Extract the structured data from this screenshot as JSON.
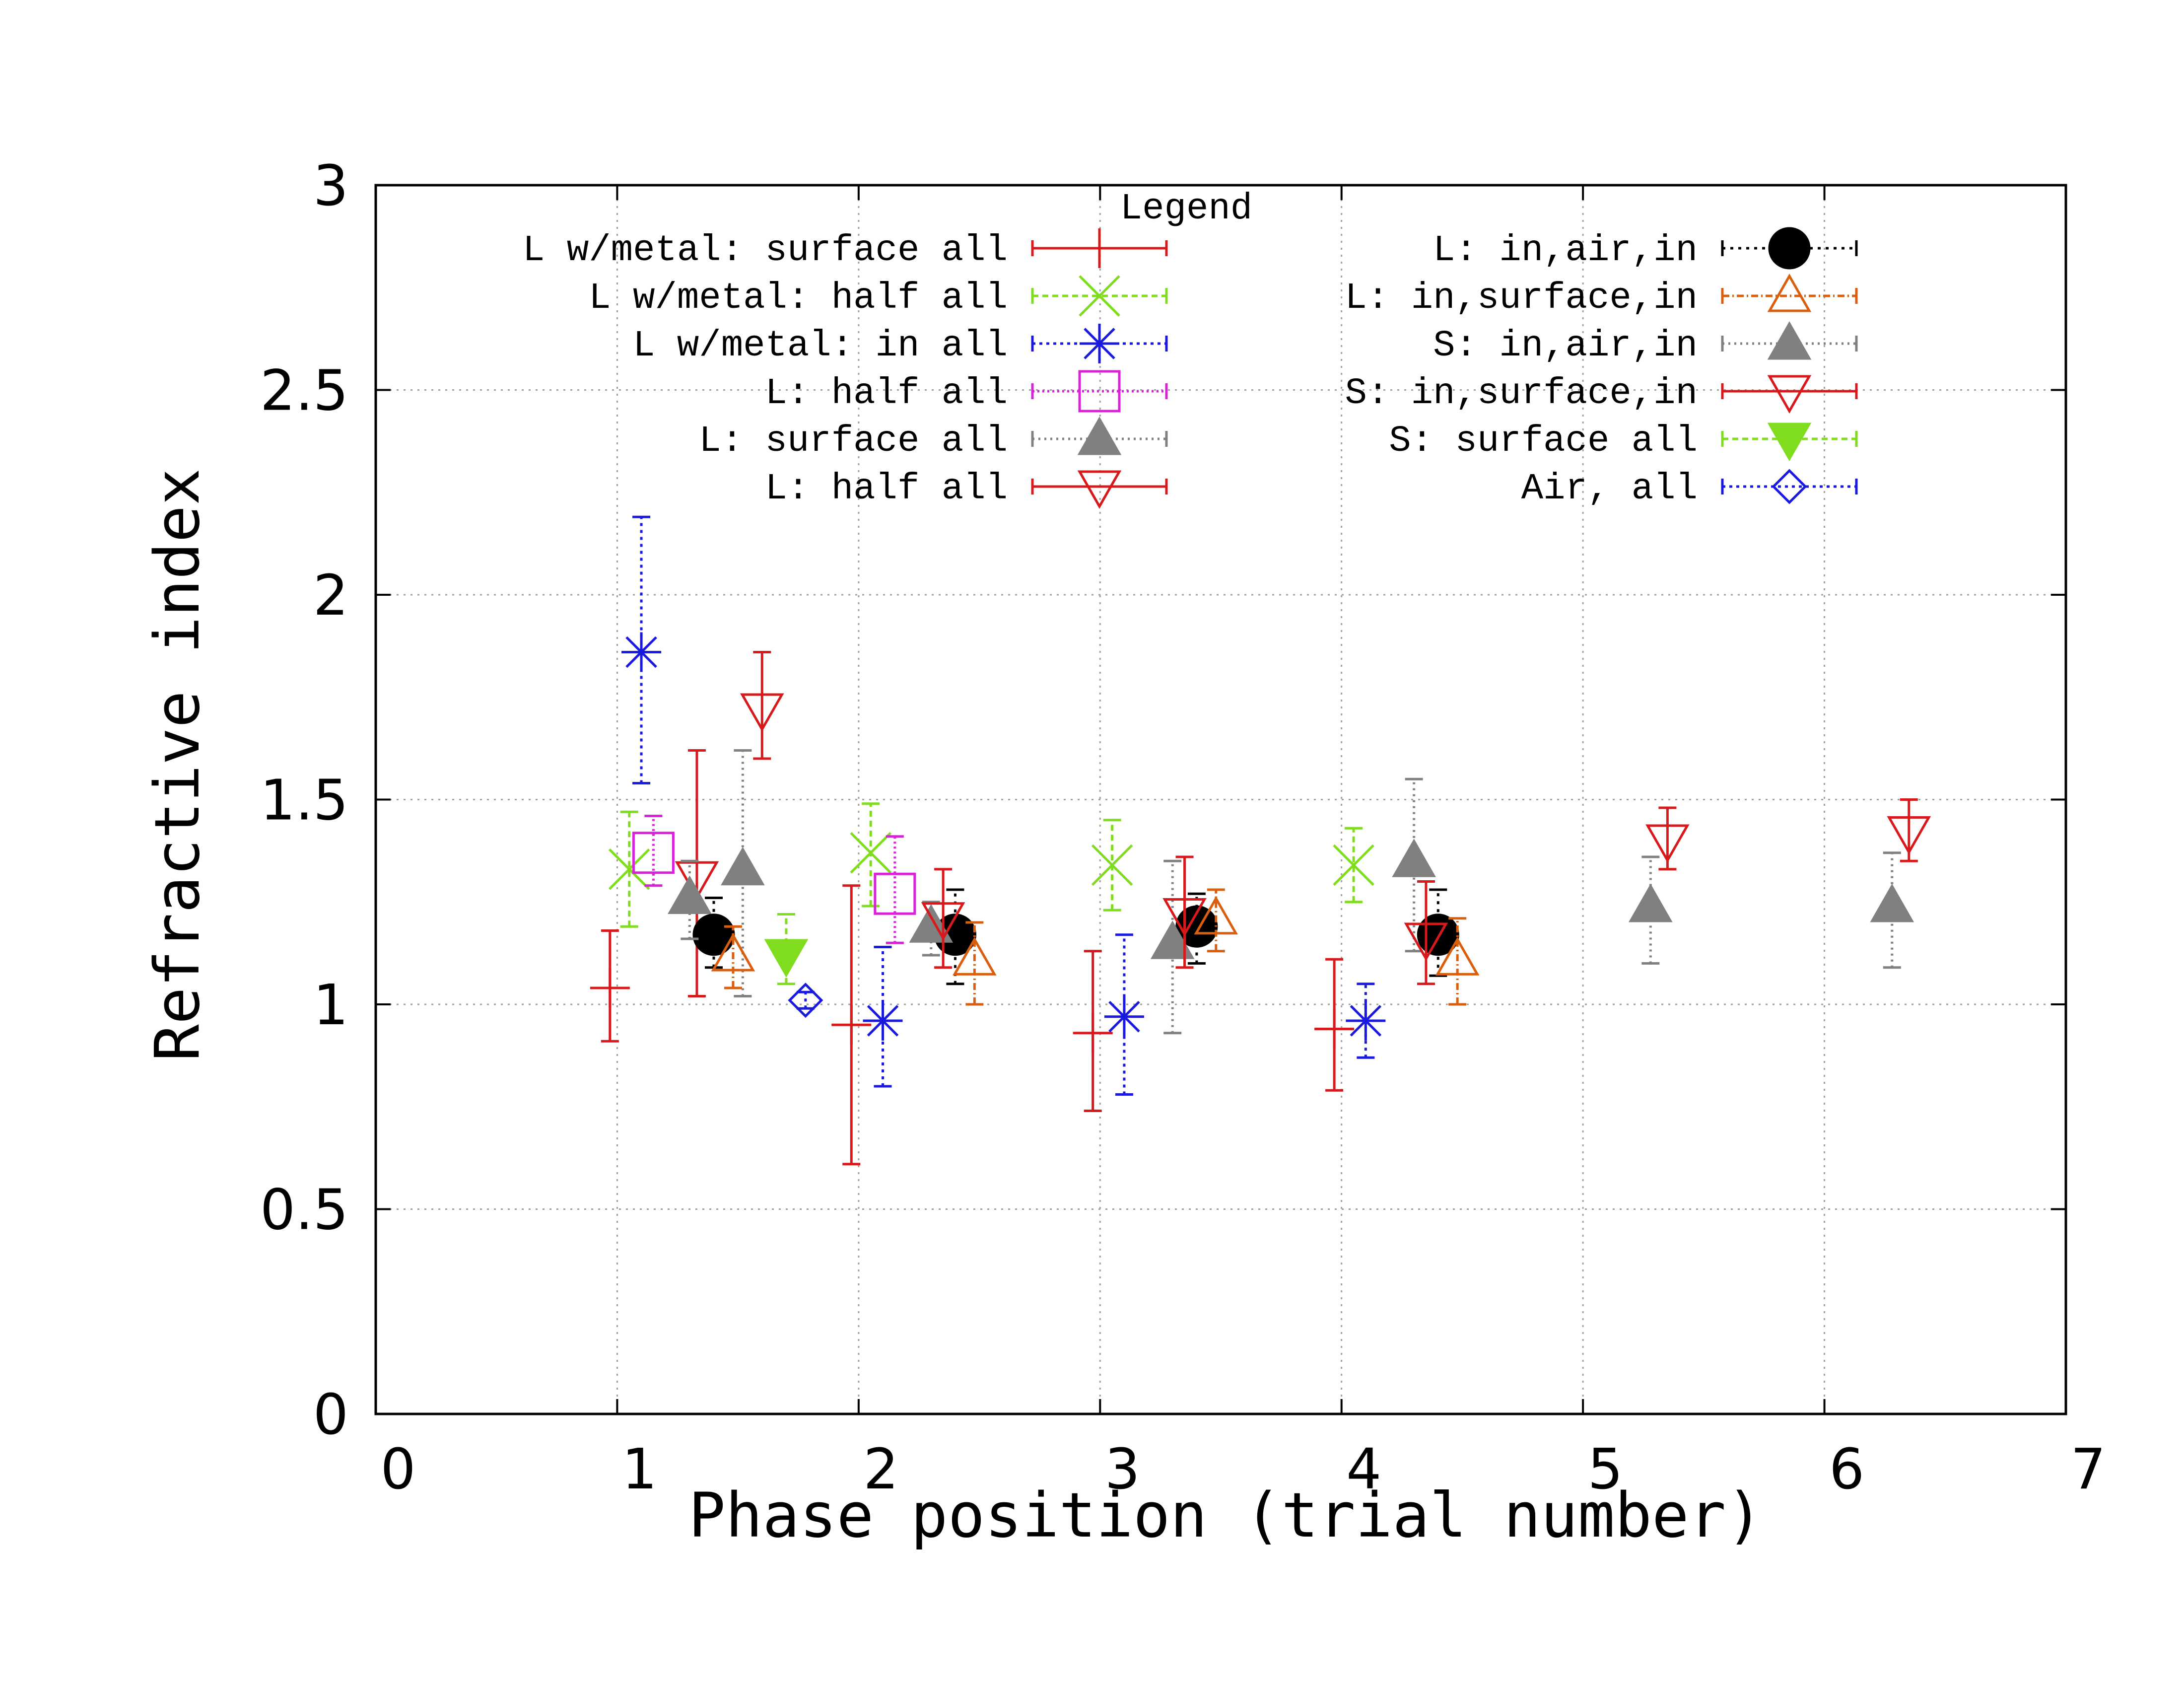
{
  "chart_data": {
    "type": "scatter",
    "xlabel": "Phase position (trial number)",
    "ylabel": "Refractive index",
    "xlim": [
      0,
      7
    ],
    "ylim": [
      0,
      3
    ],
    "xticks": [
      "0",
      "1",
      "2",
      "3",
      "4",
      "5",
      "6",
      "7"
    ],
    "yticks": [
      "0",
      "0.5",
      "1",
      "1.5",
      "2",
      "2.5",
      "3"
    ],
    "grid": true,
    "legend_title": "Legend",
    "legend_position": "top",
    "series": [
      {
        "name": "L w/metal: surface all",
        "color": "#d7191c",
        "marker": "plus",
        "dash": "",
        "points": [
          {
            "x": 0.97,
            "y": 1.04,
            "lo": 0.91,
            "hi": 1.18
          },
          {
            "x": 1.97,
            "y": 0.95,
            "lo": 0.61,
            "hi": 1.29
          },
          {
            "x": 2.97,
            "y": 0.93,
            "lo": 0.74,
            "hi": 1.13
          },
          {
            "x": 3.97,
            "y": 0.94,
            "lo": 0.79,
            "hi": 1.11
          }
        ]
      },
      {
        "name": "L w/metal: half all",
        "color": "#7fdc1e",
        "marker": "cross",
        "dash": "12,8",
        "points": [
          {
            "x": 1.05,
            "y": 1.33,
            "lo": 1.19,
            "hi": 1.47
          },
          {
            "x": 2.05,
            "y": 1.37,
            "lo": 1.24,
            "hi": 1.49
          },
          {
            "x": 3.05,
            "y": 1.34,
            "lo": 1.23,
            "hi": 1.45
          },
          {
            "x": 4.05,
            "y": 1.34,
            "lo": 1.25,
            "hi": 1.43
          }
        ]
      },
      {
        "name": "L w/metal: in all",
        "color": "#1a1adf",
        "marker": "star",
        "dash": "6,8",
        "points": [
          {
            "x": 1.1,
            "y": 1.86,
            "lo": 1.54,
            "hi": 2.19
          },
          {
            "x": 2.1,
            "y": 0.96,
            "lo": 0.8,
            "hi": 1.14
          },
          {
            "x": 3.1,
            "y": 0.97,
            "lo": 0.78,
            "hi": 1.17
          },
          {
            "x": 4.1,
            "y": 0.96,
            "lo": 0.87,
            "hi": 1.05
          }
        ]
      },
      {
        "name": "L: half all",
        "color": "#d822d8",
        "marker": "square",
        "dash": "4,6",
        "points": [
          {
            "x": 1.15,
            "y": 1.37,
            "lo": 1.29,
            "hi": 1.46
          },
          {
            "x": 2.15,
            "y": 1.27,
            "lo": 1.15,
            "hi": 1.41
          }
        ]
      },
      {
        "name": "L: surface all",
        "color": "#808080",
        "marker": "triangle-filled",
        "dash": "4,8",
        "points": [
          {
            "x": 1.52,
            "y": 1.33,
            "lo": 1.02,
            "hi": 1.62
          }
        ]
      },
      {
        "name": "L: half all",
        "color": "#d7191c",
        "marker": "triangle-down-open",
        "dash": "",
        "points": [
          {
            "x": 1.33,
            "y": 1.31,
            "lo": 1.02,
            "hi": 1.62
          },
          {
            "x": 1.6,
            "y": 1.72,
            "lo": 1.6,
            "hi": 1.86
          }
        ]
      },
      {
        "name": "L: in,air,in",
        "color": "#000000",
        "marker": "circle-filled",
        "dash": "6,10",
        "points": [
          {
            "x": 1.4,
            "y": 1.17,
            "lo": 1.09,
            "hi": 1.26
          },
          {
            "x": 2.4,
            "y": 1.17,
            "lo": 1.05,
            "hi": 1.28
          },
          {
            "x": 3.4,
            "y": 1.19,
            "lo": 1.1,
            "hi": 1.27
          },
          {
            "x": 4.4,
            "y": 1.17,
            "lo": 1.07,
            "hi": 1.28
          }
        ]
      },
      {
        "name": "L: in,surface,in",
        "color": "#d95f0e",
        "marker": "triangle-open",
        "dash": "14,6,3,6",
        "points": [
          {
            "x": 1.48,
            "y": 1.12,
            "lo": 1.04,
            "hi": 1.19
          },
          {
            "x": 2.48,
            "y": 1.11,
            "lo": 1.0,
            "hi": 1.2
          },
          {
            "x": 3.48,
            "y": 1.21,
            "lo": 1.13,
            "hi": 1.28
          },
          {
            "x": 4.48,
            "y": 1.11,
            "lo": 1.0,
            "hi": 1.21
          }
        ]
      },
      {
        "name": "S: in,air,in",
        "color": "#808080",
        "marker": "triangle-filled",
        "dash": "4,8",
        "points": [
          {
            "x": 1.3,
            "y": 1.26,
            "lo": 1.16,
            "hi": 1.35
          },
          {
            "x": 2.3,
            "y": 1.19,
            "lo": 1.12,
            "hi": 1.25
          },
          {
            "x": 3.3,
            "y": 1.15,
            "lo": 0.93,
            "hi": 1.35
          },
          {
            "x": 4.3,
            "y": 1.35,
            "lo": 1.13,
            "hi": 1.55
          },
          {
            "x": 5.28,
            "y": 1.24,
            "lo": 1.1,
            "hi": 1.36
          },
          {
            "x": 6.28,
            "y": 1.24,
            "lo": 1.09,
            "hi": 1.37
          }
        ]
      },
      {
        "name": "S: in,surface,in",
        "color": "#d7191c",
        "marker": "triangle-down-open",
        "dash": "",
        "points": [
          {
            "x": 2.35,
            "y": 1.21,
            "lo": 1.09,
            "hi": 1.33
          },
          {
            "x": 3.35,
            "y": 1.22,
            "lo": 1.09,
            "hi": 1.36
          },
          {
            "x": 4.35,
            "y": 1.16,
            "lo": 1.05,
            "hi": 1.3
          },
          {
            "x": 5.35,
            "y": 1.4,
            "lo": 1.33,
            "hi": 1.48
          },
          {
            "x": 6.35,
            "y": 1.42,
            "lo": 1.35,
            "hi": 1.5
          }
        ]
      },
      {
        "name": "S: surface all",
        "color": "#7fdc1e",
        "marker": "triangle-down-filled",
        "dash": "12,8",
        "points": [
          {
            "x": 1.7,
            "y": 1.12,
            "lo": 1.05,
            "hi": 1.22
          }
        ]
      },
      {
        "name": "Air, all",
        "color": "#1a1adf",
        "marker": "diamond-open",
        "dash": "6,8",
        "points": [
          {
            "x": 1.78,
            "y": 1.01,
            "lo": 0.99,
            "hi": 1.03
          }
        ]
      }
    ]
  }
}
